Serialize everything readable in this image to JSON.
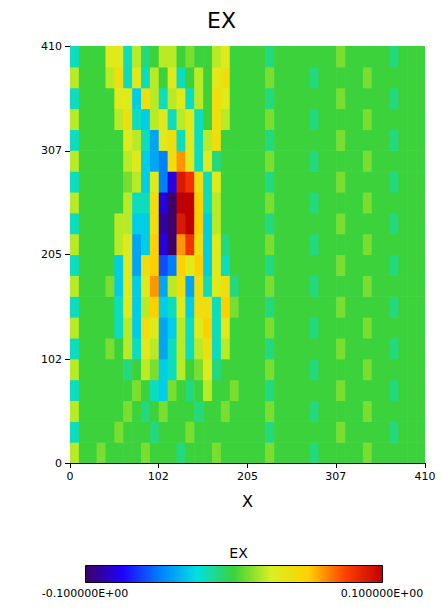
{
  "chart_data": {
    "type": "heatmap",
    "title": "EX",
    "x_label": "X",
    "xlim": [
      0,
      410
    ],
    "ylim": [
      0,
      410
    ],
    "xticks": [
      0,
      102,
      205,
      307,
      410
    ],
    "yticks": [
      0,
      102,
      205,
      307,
      410
    ],
    "x_edges": [
      0,
      10.25,
      20.5,
      30.75,
      41,
      51.25,
      61.5,
      71.75,
      82,
      92.25,
      102.5,
      112.75,
      123,
      133.25,
      143.5,
      153.75,
      164,
      174.25,
      184.5,
      194.75,
      205,
      215.25,
      225.5,
      235.75,
      246,
      256.25,
      266.5,
      276.75,
      287,
      297.25,
      307.5,
      317.75,
      328,
      338.25,
      348.5,
      358.75,
      369,
      379.25,
      389.5,
      399.75,
      410
    ],
    "y_edges": [
      0,
      20.5,
      41,
      61.5,
      82,
      102.5,
      123,
      143.5,
      164,
      184.5,
      205,
      225.5,
      246,
      266.5,
      287,
      307.5,
      328,
      348.5,
      369,
      389.5,
      410
    ],
    "cells": [
      [
        0.02,
        0,
        0,
        0.01,
        0,
        0,
        0,
        0,
        0.01,
        0,
        0,
        0,
        -0.01,
        0,
        0,
        0,
        0.01,
        0,
        0,
        0,
        0,
        0,
        0.01,
        0,
        0,
        0,
        0,
        -0.01,
        0,
        0,
        0,
        0,
        0,
        0.01,
        0,
        0,
        0,
        0,
        0,
        0
      ],
      [
        -0.02,
        0,
        0,
        0,
        0,
        0.01,
        0,
        0,
        0,
        -0.01,
        0,
        0,
        0,
        0.01,
        0,
        0,
        0,
        0,
        0,
        0,
        0,
        0,
        -0.01,
        0,
        0,
        0,
        0,
        0,
        0,
        0,
        0.01,
        0,
        0,
        0,
        0,
        0,
        -0.01,
        0,
        0,
        0
      ],
      [
        0.02,
        0,
        0,
        0,
        0,
        0,
        0.01,
        0,
        -0.01,
        0,
        0.01,
        0,
        0,
        0,
        -0.01,
        0,
        0,
        0.01,
        0,
        0,
        0,
        0,
        0.01,
        0,
        0,
        0,
        0,
        -0.01,
        0,
        0,
        0,
        0,
        0,
        0.01,
        0,
        0,
        0,
        0,
        0,
        0
      ],
      [
        -0.02,
        0,
        0,
        0,
        0,
        0,
        0,
        0.01,
        0,
        -0.02,
        -0.03,
        0.01,
        0,
        -0.01,
        0,
        0.02,
        0,
        0,
        0.01,
        0,
        0,
        0,
        -0.01,
        0,
        0,
        0,
        0,
        0,
        0,
        0,
        0.01,
        0,
        0,
        0,
        0,
        0,
        -0.01,
        0,
        0,
        0
      ],
      [
        0.02,
        0,
        0,
        0,
        0,
        0,
        -0.01,
        0,
        0.02,
        0.01,
        -0.03,
        -0.02,
        0.02,
        0,
        0.01,
        0.03,
        -0.01,
        0,
        0,
        0,
        0,
        0,
        0.01,
        0,
        0,
        0,
        0,
        -0.01,
        0,
        0,
        0,
        0,
        0,
        0.01,
        0,
        0,
        0,
        0,
        0,
        0
      ],
      [
        -0.02,
        0,
        0,
        0,
        0.01,
        0,
        0.02,
        -0.02,
        0.03,
        0.02,
        -0.04,
        -0.02,
        0.02,
        -0.02,
        0.02,
        0.04,
        -0.02,
        0.02,
        0,
        0,
        0,
        0,
        -0.01,
        0,
        0,
        0,
        0,
        0,
        0,
        0,
        0.01,
        0,
        0,
        0,
        0,
        0,
        -0.01,
        0,
        0,
        0
      ],
      [
        0.02,
        0,
        0,
        0,
        0,
        -0.02,
        0.02,
        -0.03,
        0.04,
        0.03,
        -0.04,
        -0.03,
        0.02,
        -0.02,
        0.03,
        0.05,
        -0.02,
        0.03,
        0,
        0,
        0,
        0,
        0.01,
        0,
        0,
        0,
        0,
        -0.01,
        0,
        0,
        0,
        0,
        0,
        0.01,
        0,
        0,
        0,
        0,
        0,
        0
      ],
      [
        -0.02,
        0,
        0,
        0,
        0,
        -0.02,
        0.03,
        -0.03,
        0.02,
        0.05,
        -0.03,
        -0.02,
        0.03,
        -0.03,
        0.04,
        0.04,
        -0.02,
        0.05,
        0.01,
        0,
        0,
        0,
        -0.01,
        0,
        0,
        0,
        0,
        0,
        0,
        0,
        0.01,
        0,
        0,
        0,
        0,
        0,
        -0.01,
        0,
        0,
        0
      ],
      [
        0.02,
        0,
        0,
        0,
        0.01,
        -0.03,
        0.03,
        -0.03,
        0.03,
        0.06,
        -0.04,
        0.02,
        0.04,
        -0.04,
        0.04,
        -0.02,
        0.03,
        0.04,
        -0.01,
        0,
        0,
        0,
        0.01,
        0,
        0,
        0,
        0,
        -0.01,
        0,
        0,
        0,
        0,
        0,
        0.01,
        0,
        0,
        0,
        0,
        0,
        0
      ],
      [
        -0.02,
        0,
        0,
        0,
        0,
        -0.03,
        0.03,
        -0.04,
        0.04,
        0.05,
        -0.06,
        -0.05,
        0.05,
        0.03,
        0.05,
        -0.03,
        0.03,
        -0.02,
        0,
        0,
        0,
        0,
        -0.01,
        0,
        0,
        0,
        0,
        0,
        0,
        0,
        0.01,
        0,
        0,
        0,
        0,
        0,
        -0.01,
        0,
        0,
        0
      ],
      [
        0.02,
        0,
        0,
        0,
        0,
        0.02,
        0.03,
        -0.04,
        -0.03,
        0.05,
        -0.08,
        -0.1,
        0.06,
        0.08,
        0.04,
        -0.03,
        0.03,
        -0.01,
        0,
        0,
        0,
        0,
        0.01,
        0,
        0,
        0,
        0,
        -0.01,
        0,
        0,
        0,
        0,
        0,
        0.01,
        0,
        0,
        0,
        0,
        0,
        0
      ],
      [
        -0.02,
        0,
        0,
        0,
        0,
        0.02,
        0.02,
        -0.03,
        -0.03,
        0.04,
        -0.09,
        -0.1,
        0.09,
        0.1,
        0.05,
        -0.03,
        0.02,
        0,
        0,
        0,
        0,
        0,
        -0.01,
        0,
        0,
        0,
        0,
        0,
        0,
        0,
        0.01,
        0,
        0,
        0,
        0,
        0,
        -0.01,
        0,
        0,
        0
      ],
      [
        0.02,
        0,
        0,
        0,
        0,
        0,
        0.02,
        -0.02,
        -0.02,
        0.04,
        -0.08,
        -0.1,
        0.1,
        0.1,
        0.05,
        -0.02,
        0.02,
        0,
        0,
        0,
        0,
        0,
        0.01,
        0,
        0,
        0,
        0,
        -0.01,
        0,
        0,
        0,
        0,
        0,
        0.01,
        0,
        0,
        0,
        0,
        0,
        0
      ],
      [
        -0.02,
        0,
        0,
        0,
        0,
        0,
        0.01,
        0.02,
        -0.03,
        0.03,
        -0.05,
        -0.08,
        0.09,
        0.08,
        0.04,
        -0.02,
        0.03,
        0,
        0,
        0,
        0,
        0,
        -0.01,
        0,
        0,
        0,
        0,
        0,
        0,
        0,
        0.01,
        0,
        0,
        0,
        0,
        0,
        -0.01,
        0,
        0,
        0
      ],
      [
        0.02,
        0,
        0,
        0,
        0,
        0,
        0.02,
        0.03,
        -0.03,
        -0.04,
        -0.05,
        0.04,
        0.06,
        0.03,
        -0.02,
        0.03,
        -0.01,
        0,
        0,
        0,
        0,
        0,
        0.01,
        0,
        0,
        0,
        0,
        -0.01,
        0,
        0,
        0,
        0,
        0,
        0.01,
        0,
        0,
        0,
        0,
        0,
        0
      ],
      [
        -0.02,
        0,
        0,
        0,
        0,
        0,
        0.03,
        0.02,
        -0.02,
        -0.04,
        0.03,
        0.04,
        -0.02,
        0.03,
        -0.02,
        0.02,
        0.04,
        0,
        0,
        0,
        0,
        0,
        -0.01,
        0,
        0,
        0,
        0,
        0,
        0,
        0,
        0.01,
        0,
        0,
        0,
        0,
        0,
        -0.01,
        0,
        0,
        0
      ],
      [
        0.02,
        0,
        0,
        0,
        0,
        0.02,
        0.04,
        -0.02,
        -0.03,
        0.02,
        0.03,
        -0.02,
        0.02,
        0.03,
        -0.02,
        0,
        0.04,
        0.02,
        0,
        0,
        0,
        0,
        0.01,
        0,
        0,
        0,
        0,
        -0.01,
        0,
        0,
        0,
        0,
        0,
        0.01,
        0,
        0,
        0,
        0,
        0,
        0
      ],
      [
        -0.02,
        0,
        0,
        0,
        0,
        0.03,
        0.03,
        -0.03,
        0.04,
        0.02,
        -0.02,
        0.02,
        0.03,
        -0.02,
        0.02,
        0,
        0.04,
        0.03,
        0,
        0,
        0,
        0,
        -0.01,
        0,
        0,
        0,
        0,
        0,
        0,
        0,
        0.01,
        0,
        0,
        0,
        0,
        0,
        -0.01,
        0,
        0,
        0
      ],
      [
        0.02,
        0,
        0,
        0,
        0.02,
        0.04,
        -0.02,
        0.03,
        -0.02,
        0.02,
        0,
        0.03,
        -0.02,
        0,
        0.02,
        0,
        0.03,
        0.04,
        0,
        0,
        0,
        0,
        0.01,
        0,
        0,
        0,
        0,
        -0.01,
        0,
        0,
        0,
        0,
        0,
        0.01,
        0,
        0,
        0,
        0,
        0,
        0
      ],
      [
        -0.02,
        0,
        0,
        0,
        0.03,
        0.03,
        -0.02,
        0.02,
        -0.01,
        0,
        0.02,
        0.02,
        0,
        0.01,
        0,
        0,
        0.02,
        0.03,
        0,
        0,
        0,
        0,
        -0.01,
        0,
        0,
        0,
        0,
        0,
        0,
        0,
        0.01,
        0,
        0,
        0,
        0,
        0,
        -0.01,
        0,
        0,
        0
      ]
    ],
    "colorbar": {
      "label": "EX",
      "range": [
        -0.1,
        0.1
      ],
      "ticks": [
        {
          "value": -0.1,
          "label": "-0.100000E+00"
        },
        {
          "value": 0.1,
          "label": "0.100000E+00"
        }
      ]
    }
  }
}
